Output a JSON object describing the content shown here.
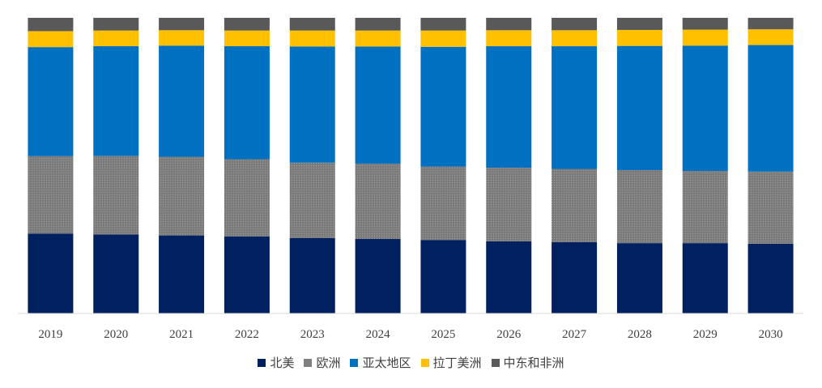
{
  "chart_data": {
    "type": "bar",
    "stacked": true,
    "categories": [
      "2019",
      "2020",
      "2021",
      "2022",
      "2023",
      "2024",
      "2025",
      "2026",
      "2027",
      "2028",
      "2029",
      "2030"
    ],
    "series": [
      {
        "name": "北美",
        "color": "#002060",
        "values": [
          27,
          26.7,
          26.4,
          26.1,
          25.5,
          25.2,
          24.8,
          24.4,
          24.1,
          23.8,
          23.8,
          23.6
        ]
      },
      {
        "name": "欧洲",
        "color": "#7f7f7f",
        "pattern": "grid",
        "values": [
          26.2,
          26.6,
          26.6,
          26.1,
          25.5,
          25.5,
          24.9,
          24.9,
          24.8,
          24.7,
          24.4,
          24.4
        ]
      },
      {
        "name": "亚太地区",
        "color": "#0070c0",
        "values": [
          36.9,
          37.1,
          37.6,
          38.2,
          39.3,
          39.6,
          40.5,
          41.1,
          41.5,
          42,
          42.4,
          42.8
        ]
      },
      {
        "name": "拉丁美洲",
        "color": "#ffc000",
        "values": [
          5.4,
          5.3,
          5.2,
          5.3,
          5.4,
          5.4,
          5.5,
          5.4,
          5.4,
          5.4,
          5.4,
          5.3
        ]
      },
      {
        "name": "中东和非洲",
        "color": "#595959",
        "values": [
          4.5,
          4.3,
          4.2,
          4.3,
          4.3,
          4.3,
          4.3,
          4.2,
          4.2,
          4.1,
          4.0,
          3.9
        ]
      }
    ],
    "ylim": [
      0,
      100
    ],
    "grid": false,
    "legend": "bottom",
    "xlabel": "",
    "ylabel": ""
  }
}
